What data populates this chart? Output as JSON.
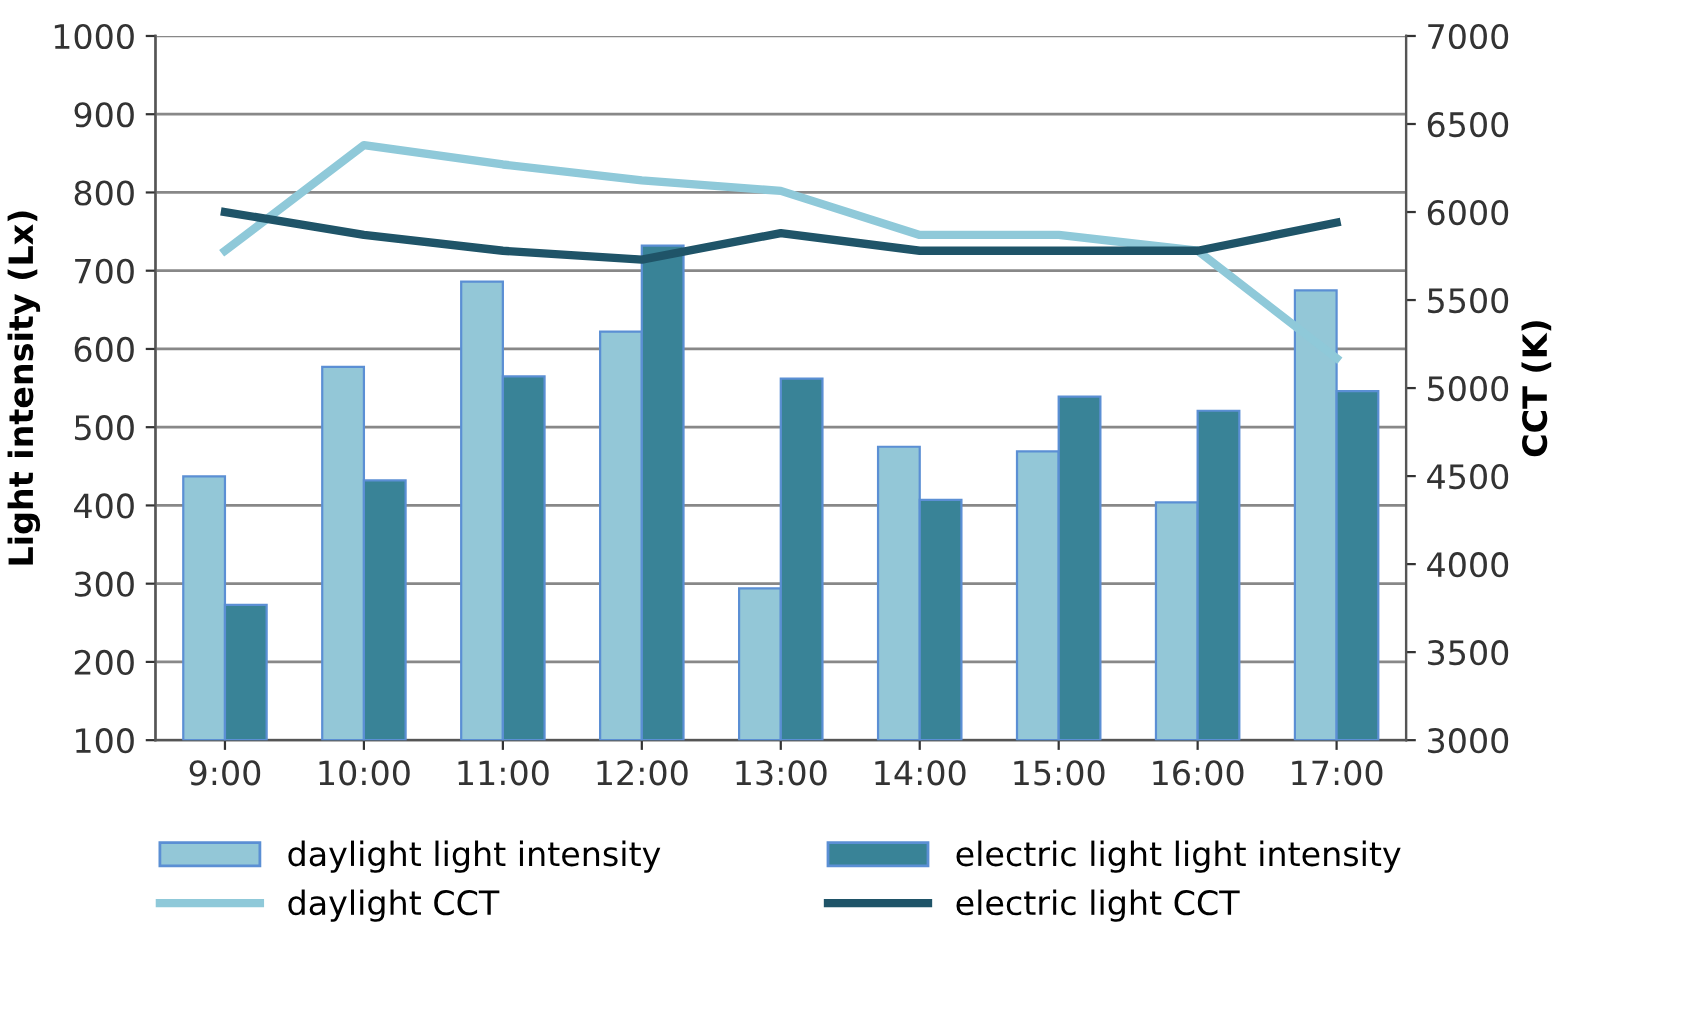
{
  "chart_data": {
    "type": "bar",
    "categories": [
      "9:00",
      "10:00",
      "11:00",
      "12:00",
      "13:00",
      "14:00",
      "15:00",
      "16:00",
      "17:00"
    ],
    "ylabel": "Light intensity (Lx)",
    "y2label": "CCT (K)",
    "ylim": [
      100,
      1000
    ],
    "yticks": [
      100,
      200,
      300,
      400,
      500,
      600,
      700,
      800,
      900,
      1000
    ],
    "y2lim": [
      3000,
      7000
    ],
    "y2ticks": [
      3000,
      3500,
      4000,
      4500,
      5000,
      5500,
      6000,
      6500,
      7000
    ],
    "grid": "y",
    "legend": "bottom",
    "series": [
      {
        "name": "daylight light intensity",
        "color": "#93c7d7",
        "values": [
          437,
          577,
          686,
          622,
          294,
          475,
          469,
          404,
          675
        ]
      },
      {
        "name": "electric light light intensity",
        "color": "#398397",
        "values": [
          273,
          432,
          565,
          732,
          562,
          407,
          539,
          521,
          546
        ]
      },
      {
        "name": "daylight CCT",
        "type": "line",
        "axis": "y2",
        "color": "#8fc9d9",
        "values": [
          5780,
          6380,
          6270,
          6180,
          6120,
          5870,
          5870,
          5780,
          5170
        ]
      },
      {
        "name": "electric light CCT",
        "type": "line",
        "axis": "y2",
        "color": "#1f5468",
        "values": [
          6000,
          5870,
          5780,
          5730,
          5880,
          5780,
          5780,
          5780,
          5940
        ]
      }
    ]
  }
}
